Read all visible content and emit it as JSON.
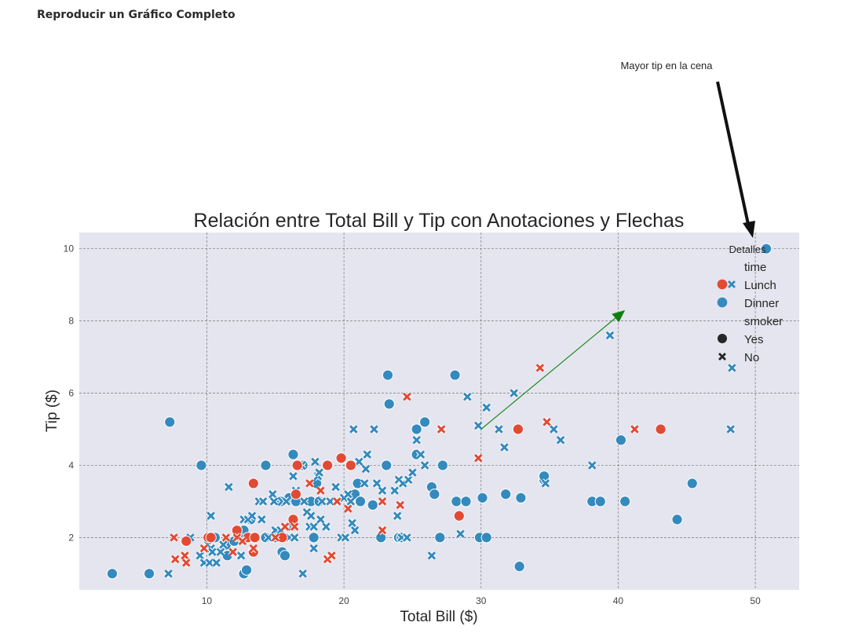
{
  "page": {
    "heading": "Reproducir un Gráfico Completo"
  },
  "chart_data": {
    "type": "scatter",
    "title": "Relación entre Total Bill y Tip con Anotaciones y Flechas",
    "xlabel": "Total Bill ($)",
    "ylabel": "Tip ($)",
    "xlim": [
      0.7,
      53.2
    ],
    "ylim": [
      0.55,
      10.45
    ],
    "xticks": [
      10,
      20,
      30,
      40,
      50
    ],
    "yticks": [
      2,
      4,
      6,
      8,
      10
    ],
    "grid": true,
    "colors": {
      "Lunch": "#e24a33",
      "Dinner": "#348abd",
      "plot_bg": "#e5e5f0",
      "arrow_green": "#1a8a1a",
      "arrow_black": "#111111"
    },
    "legend": {
      "title": "Detalles",
      "placement": "top-right",
      "hue_title": "time",
      "hue_items": [
        "Lunch",
        "Dinner"
      ],
      "style_title": "smoker",
      "style_items": [
        "Yes",
        "No"
      ]
    },
    "annotations": [
      {
        "text": "Mayor tip en la cena",
        "target": [
          50.8,
          10.0
        ],
        "arrow": "black"
      },
      {
        "text": "",
        "from": [
          30,
          5.0
        ],
        "to": [
          40.5,
          8.3
        ],
        "arrow": "green"
      }
    ],
    "series": [
      {
        "name": "Dinner / Yes",
        "time": "Dinner",
        "smoker": "Yes",
        "points": [
          [
            3.1,
            1.0
          ],
          [
            5.8,
            1.0
          ],
          [
            7.3,
            5.2
          ],
          [
            9.6,
            4.0
          ],
          [
            10.3,
            2.0
          ],
          [
            10.6,
            2.0
          ],
          [
            11.5,
            1.5
          ],
          [
            11.4,
            1.8
          ],
          [
            12.0,
            1.9
          ],
          [
            12.7,
            1.0
          ],
          [
            12.9,
            1.1
          ],
          [
            12.7,
            2.2
          ],
          [
            13.2,
            2.5
          ],
          [
            13.4,
            2.0
          ],
          [
            14.3,
            4.0
          ],
          [
            14.3,
            2.0
          ],
          [
            15.0,
            2.0
          ],
          [
            15.5,
            1.6
          ],
          [
            15.4,
            3.0
          ],
          [
            15.7,
            1.5
          ],
          [
            16.0,
            3.1
          ],
          [
            16.3,
            4.3
          ],
          [
            16.5,
            3.0
          ],
          [
            17.0,
            4.0
          ],
          [
            17.6,
            3.0
          ],
          [
            17.8,
            2.0
          ],
          [
            18.0,
            3.5
          ],
          [
            18.2,
            3.0
          ],
          [
            20.5,
            4.0
          ],
          [
            20.8,
            3.2
          ],
          [
            21.0,
            3.5
          ],
          [
            21.2,
            3.0
          ],
          [
            22.1,
            2.9
          ],
          [
            22.7,
            2.0
          ],
          [
            23.1,
            4.0
          ],
          [
            23.2,
            6.5
          ],
          [
            23.3,
            5.7
          ],
          [
            24.0,
            2.0
          ],
          [
            24.2,
            2.0
          ],
          [
            25.3,
            4.3
          ],
          [
            25.3,
            5.0
          ],
          [
            25.9,
            5.2
          ],
          [
            26.4,
            3.4
          ],
          [
            26.6,
            3.2
          ],
          [
            27.0,
            2.0
          ],
          [
            27.2,
            4.0
          ],
          [
            28.1,
            6.5
          ],
          [
            28.2,
            3.0
          ],
          [
            28.9,
            3.0
          ],
          [
            29.9,
            2.0
          ],
          [
            30.1,
            3.1
          ],
          [
            30.4,
            2.0
          ],
          [
            31.8,
            3.2
          ],
          [
            32.8,
            1.2
          ],
          [
            32.9,
            3.1
          ],
          [
            34.6,
            3.6
          ],
          [
            34.6,
            3.7
          ],
          [
            38.1,
            3.0
          ],
          [
            38.7,
            3.0
          ],
          [
            40.2,
            4.7
          ],
          [
            40.5,
            3.0
          ],
          [
            44.3,
            2.5
          ],
          [
            45.4,
            3.5
          ],
          [
            50.8,
            10.0
          ]
        ]
      },
      {
        "name": "Dinner / No",
        "time": "Dinner",
        "smoker": "No",
        "points": [
          [
            7.2,
            1.0
          ],
          [
            8.8,
            2.0
          ],
          [
            9.5,
            1.5
          ],
          [
            9.8,
            1.3
          ],
          [
            10.1,
            1.8
          ],
          [
            10.2,
            1.3
          ],
          [
            10.3,
            1.7
          ],
          [
            10.3,
            2.6
          ],
          [
            10.4,
            1.6
          ],
          [
            10.7,
            1.3
          ],
          [
            11.0,
            1.6
          ],
          [
            11.2,
            1.8
          ],
          [
            11.6,
            3.4
          ],
          [
            12.3,
            2.0
          ],
          [
            12.5,
            1.5
          ],
          [
            12.5,
            2.0
          ],
          [
            12.7,
            2.5
          ],
          [
            13.0,
            2.5
          ],
          [
            13.3,
            2.6
          ],
          [
            13.4,
            2.0
          ],
          [
            13.8,
            3.0
          ],
          [
            14.0,
            2.5
          ],
          [
            14.1,
            3.0
          ],
          [
            14.5,
            2.0
          ],
          [
            14.8,
            3.2
          ],
          [
            14.9,
            3.0
          ],
          [
            15.0,
            2.2
          ],
          [
            15.4,
            2.2
          ],
          [
            15.5,
            3.0
          ],
          [
            15.8,
            3.0
          ],
          [
            16.0,
            2.0
          ],
          [
            16.2,
            2.3
          ],
          [
            16.3,
            3.7
          ],
          [
            16.4,
            2.0
          ],
          [
            16.5,
            3.3
          ],
          [
            16.9,
            4.0
          ],
          [
            17.0,
            1.0
          ],
          [
            17.1,
            3.0
          ],
          [
            17.3,
            2.7
          ],
          [
            17.5,
            2.3
          ],
          [
            17.6,
            2.6
          ],
          [
            17.8,
            2.3
          ],
          [
            17.8,
            1.7
          ],
          [
            17.9,
            4.1
          ],
          [
            18.1,
            3.7
          ],
          [
            18.2,
            3.8
          ],
          [
            18.3,
            2.5
          ],
          [
            18.4,
            3.0
          ],
          [
            18.7,
            2.3
          ],
          [
            19.0,
            3.0
          ],
          [
            19.4,
            3.4
          ],
          [
            19.8,
            2.0
          ],
          [
            20.0,
            3.1
          ],
          [
            20.1,
            2.0
          ],
          [
            20.3,
            3.2
          ],
          [
            20.5,
            3.0
          ],
          [
            20.6,
            2.4
          ],
          [
            20.7,
            5.0
          ],
          [
            20.8,
            2.2
          ],
          [
            21.1,
            4.1
          ],
          [
            21.5,
            3.5
          ],
          [
            21.6,
            3.9
          ],
          [
            21.7,
            4.3
          ],
          [
            22.2,
            5.0
          ],
          [
            22.4,
            3.5
          ],
          [
            22.8,
            3.3
          ],
          [
            23.7,
            3.3
          ],
          [
            23.9,
            2.6
          ],
          [
            24.0,
            3.6
          ],
          [
            24.2,
            2.0
          ],
          [
            24.3,
            3.5
          ],
          [
            24.6,
            2.0
          ],
          [
            24.7,
            3.6
          ],
          [
            25.0,
            3.8
          ],
          [
            25.3,
            4.7
          ],
          [
            25.6,
            4.3
          ],
          [
            25.9,
            4.0
          ],
          [
            26.4,
            1.5
          ],
          [
            28.5,
            2.1
          ],
          [
            29.0,
            5.9
          ],
          [
            29.8,
            5.1
          ],
          [
            30.4,
            5.6
          ],
          [
            31.3,
            5.0
          ],
          [
            31.7,
            4.5
          ],
          [
            32.4,
            6.0
          ],
          [
            34.7,
            3.5
          ],
          [
            35.3,
            5.0
          ],
          [
            35.8,
            4.7
          ],
          [
            38.1,
            4.0
          ],
          [
            39.4,
            7.6
          ],
          [
            48.2,
            5.0
          ],
          [
            48.3,
            6.7
          ]
        ]
      },
      {
        "name": "Lunch / Yes",
        "time": "Lunch",
        "smoker": "Yes",
        "points": [
          [
            8.5,
            1.9
          ],
          [
            10.1,
            2.0
          ],
          [
            10.3,
            2.0
          ],
          [
            12.2,
            2.2
          ],
          [
            13.0,
            2.0
          ],
          [
            13.4,
            3.5
          ],
          [
            13.4,
            1.6
          ],
          [
            13.5,
            2.0
          ],
          [
            15.5,
            2.0
          ],
          [
            16.3,
            2.5
          ],
          [
            16.5,
            3.2
          ],
          [
            16.6,
            4.0
          ],
          [
            18.8,
            4.0
          ],
          [
            19.8,
            4.2
          ],
          [
            20.5,
            4.0
          ],
          [
            28.4,
            2.6
          ],
          [
            32.7,
            5.0
          ],
          [
            43.1,
            5.0
          ]
        ]
      },
      {
        "name": "Lunch / No",
        "time": "Lunch",
        "smoker": "No",
        "points": [
          [
            7.6,
            2.0
          ],
          [
            7.7,
            1.4
          ],
          [
            8.4,
            1.5
          ],
          [
            8.5,
            1.3
          ],
          [
            9.8,
            1.7
          ],
          [
            11.4,
            2.0
          ],
          [
            11.9,
            1.6
          ],
          [
            12.2,
            2.0
          ],
          [
            12.6,
            1.9
          ],
          [
            13.4,
            1.7
          ],
          [
            15.0,
            2.0
          ],
          [
            15.7,
            2.3
          ],
          [
            16.4,
            2.3
          ],
          [
            17.5,
            3.5
          ],
          [
            18.3,
            3.3
          ],
          [
            18.8,
            1.4
          ],
          [
            19.1,
            1.5
          ],
          [
            19.5,
            3.0
          ],
          [
            20.3,
            2.8
          ],
          [
            22.8,
            2.2
          ],
          [
            22.8,
            3.0
          ],
          [
            24.1,
            2.9
          ],
          [
            24.6,
            5.9
          ],
          [
            27.1,
            5.0
          ],
          [
            29.8,
            4.2
          ],
          [
            34.3,
            6.7
          ],
          [
            34.8,
            5.2
          ],
          [
            41.2,
            5.0
          ]
        ]
      }
    ]
  }
}
